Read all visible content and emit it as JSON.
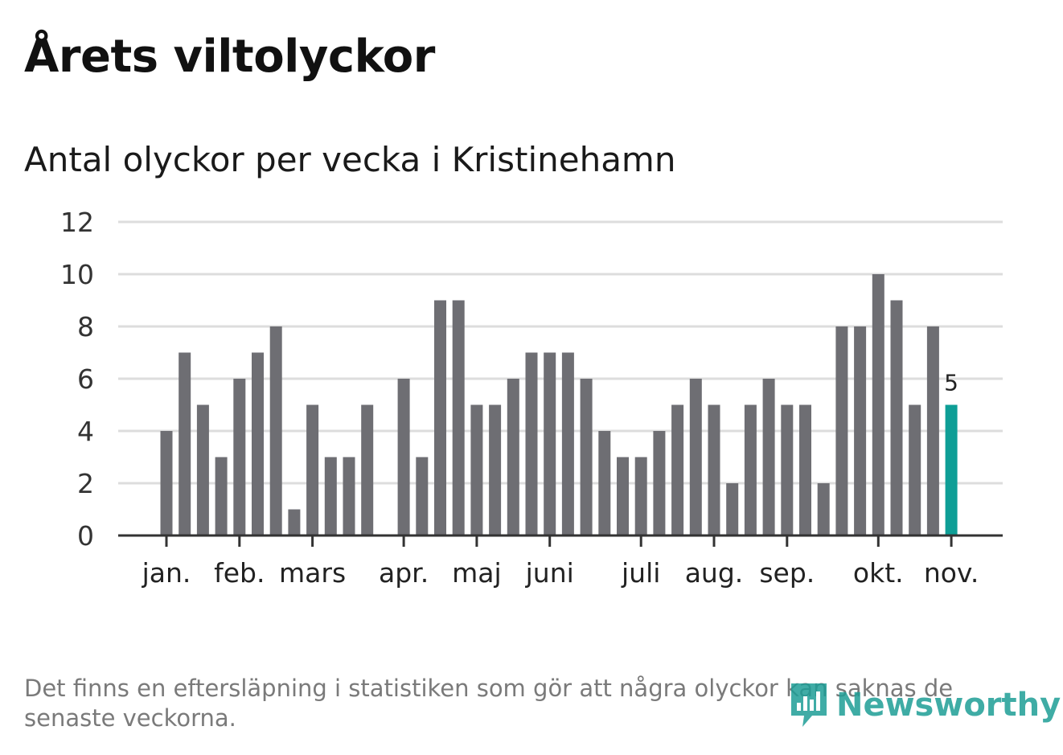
{
  "header": {
    "title": "Årets viltolyckor",
    "subtitle": "Antal olyckor per vecka i Kristinehamn"
  },
  "footer": {
    "note": "Det finns en eftersläpning i statistiken som gör att några olyckor kan saknas de senaste veckorna.",
    "brand": "Newsworthy",
    "brand_icon": "newsworthy-logo-icon"
  },
  "colors": {
    "bar": "#6e6e73",
    "highlight": "#0e9e96",
    "grid": "#dddddd",
    "axis": "#333333",
    "brand": "#1e9e96"
  },
  "chart_data": {
    "type": "bar",
    "title": "Antal olyckor per vecka i Kristinehamn",
    "xlabel": "",
    "ylabel": "",
    "ylim": [
      0,
      12
    ],
    "yticks": [
      "0",
      "2",
      "4",
      "6",
      "8",
      "10",
      "12"
    ],
    "grid": true,
    "series": [
      {
        "values": [
          4,
          7,
          5,
          3,
          6,
          7,
          8,
          1,
          5,
          3,
          3,
          5,
          0,
          6,
          3,
          9,
          9,
          5,
          5,
          6,
          7,
          7,
          7,
          6,
          4,
          3,
          3,
          4,
          5,
          6,
          5,
          2,
          5,
          6,
          5,
          5,
          2,
          8,
          8,
          10,
          9,
          5,
          8,
          5
        ]
      }
    ],
    "highlight_index": 43,
    "annotation": {
      "index": 43,
      "text": "5"
    },
    "month_ticks": [
      {
        "label": "jan.",
        "week": 0
      },
      {
        "label": "feb.",
        "week": 4
      },
      {
        "label": "mars",
        "week": 8
      },
      {
        "label": "apr.",
        "week": 13
      },
      {
        "label": "maj",
        "week": 17
      },
      {
        "label": "juni",
        "week": 21
      },
      {
        "label": "juli",
        "week": 26
      },
      {
        "label": "aug.",
        "week": 30
      },
      {
        "label": "sep.",
        "week": 34
      },
      {
        "label": "okt.",
        "week": 39
      },
      {
        "label": "nov.",
        "week": 43
      }
    ]
  }
}
